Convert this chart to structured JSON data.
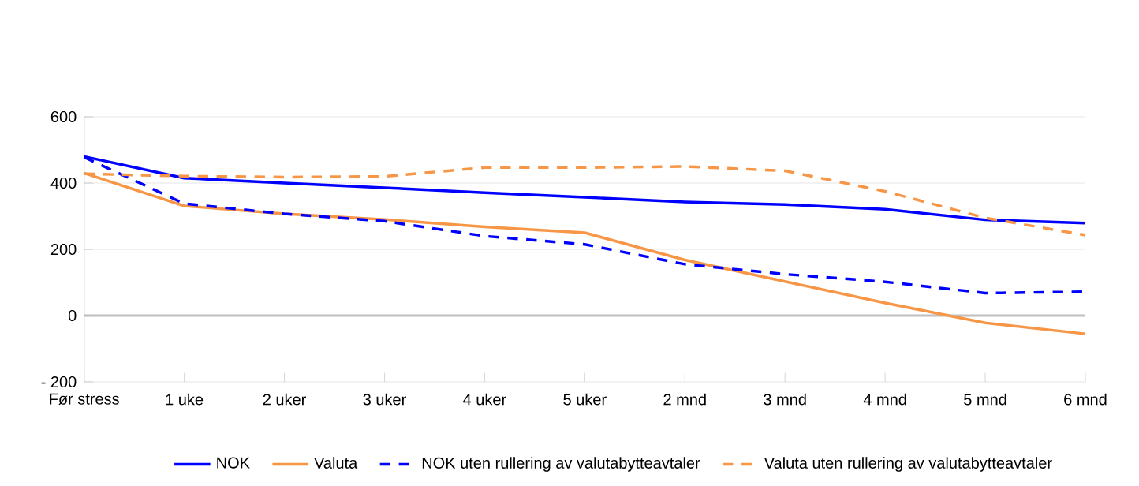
{
  "chart_data": {
    "type": "line",
    "categories": [
      "Før stress",
      "1 uke",
      "2 uker",
      "3 uker",
      "4 uker",
      "5 uker",
      "2 mnd",
      "3 mnd",
      "4 mnd",
      "5 mnd",
      "6 mnd"
    ],
    "series": [
      {
        "name": "NOK",
        "color": "#0000ff",
        "line_style": "solid",
        "values": [
          480,
          415,
          400,
          386,
          371,
          357,
          343,
          335,
          321,
          289,
          279
        ]
      },
      {
        "name": "Valuta",
        "color": "#f79646",
        "line_style": "solid",
        "values": [
          430,
          331,
          307,
          290,
          268,
          250,
          168,
          103,
          38,
          -22,
          -55
        ]
      },
      {
        "name": "NOK uten rullering av valutabytteavtaler",
        "color": "#0000ff",
        "line_style": "dashed",
        "values": [
          478,
          338,
          307,
          285,
          240,
          215,
          155,
          125,
          102,
          68,
          72
        ]
      },
      {
        "name": "Valuta uten rullering av valutabytteavtaler",
        "color": "#f79646",
        "line_style": "dashed",
        "values": [
          428,
          421,
          418,
          420,
          447,
          447,
          450,
          437,
          375,
          295,
          243
        ]
      }
    ],
    "ylim": [
      -200,
      600
    ],
    "yticks": [
      {
        "value": -200,
        "label": "- 200"
      },
      0,
      200,
      400,
      600
    ],
    "grid": "y",
    "legend": "bottom"
  }
}
